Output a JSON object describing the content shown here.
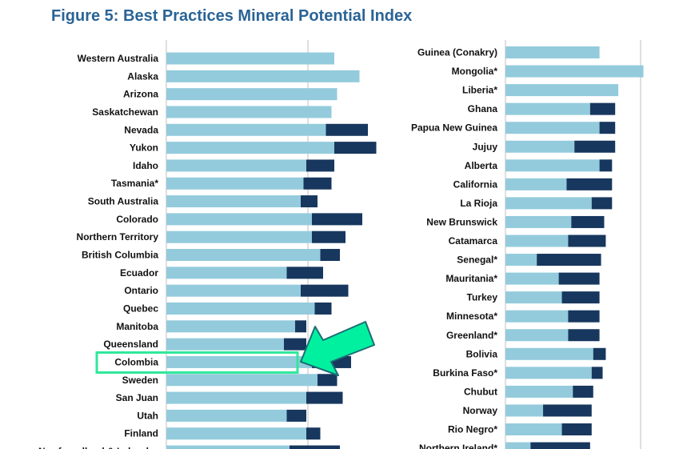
{
  "page": {
    "title": "Figure 5: Best Practices Mineral Potential Index"
  },
  "colors": {
    "title": "#2a6496",
    "light_bar": "#93cbdc",
    "dark_bar": "#17375e",
    "gridline": "#bfbfbf",
    "highlight_box": "#2ee89a",
    "arrow_fill": "#00f0a0",
    "arrow_stroke": "#1c6e74"
  },
  "annotation": {
    "highlighted_category": "Colombia",
    "type": "highlight-box-with-arrow"
  },
  "chart_data": [
    {
      "type": "bar",
      "orientation": "horizontal",
      "stacked": true,
      "categories": [
        "Western Australia",
        "Alaska",
        "Arizona",
        "Saskatchewan",
        "Nevada",
        "Yukon",
        "Idaho",
        "Tasmania*",
        "South Australia",
        "Colorado",
        "Northern Territory",
        "British Columbia",
        "Ecuador",
        "Ontario",
        "Quebec",
        "Manitoba",
        "Queensland",
        "Colombia",
        "Sweden",
        "San Juan",
        "Utah",
        "Finland",
        "Newfoundland & Labrador"
      ],
      "series": [
        {
          "values": [
            0.6,
            0.69,
            0.61,
            0.59,
            0.57,
            0.6,
            0.5,
            0.49,
            0.48,
            0.52,
            0.52,
            0.55,
            0.43,
            0.48,
            0.53,
            0.46,
            0.42,
            0.52,
            0.54,
            0.5,
            0.43,
            0.5,
            0.44
          ]
        },
        {
          "values": [
            0.0,
            0.0,
            0.0,
            0.0,
            0.15,
            0.15,
            0.1,
            0.1,
            0.06,
            0.18,
            0.12,
            0.07,
            0.13,
            0.17,
            0.06,
            0.04,
            0.08,
            0.14,
            0.07,
            0.13,
            0.07,
            0.05,
            0.18
          ]
        }
      ]
    },
    {
      "type": "bar",
      "orientation": "horizontal",
      "stacked": true,
      "categories": [
        "Guinea (Conakry)",
        "Mongolia*",
        "Liberia*",
        "Ghana",
        "Papua New Guinea",
        "Jujuy",
        "Alberta",
        "California",
        "La Rioja",
        "New Brunswick",
        "Catamarca",
        "Senegal*",
        "Mauritania*",
        "Turkey",
        "Minnesota*",
        "Greenland*",
        "Bolivia",
        "Burkina Faso*",
        "Chubut",
        "Norway",
        "Rio Negro*",
        "Northern Ireland*"
      ],
      "series": [
        {
          "values": [
            0.6,
            0.88,
            0.72,
            0.54,
            0.6,
            0.44,
            0.6,
            0.39,
            0.55,
            0.42,
            0.4,
            0.2,
            0.34,
            0.36,
            0.4,
            0.4,
            0.56,
            0.55,
            0.43,
            0.24,
            0.36,
            0.16
          ]
        },
        {
          "values": [
            0.0,
            0.0,
            0.0,
            0.16,
            0.1,
            0.26,
            0.08,
            0.29,
            0.13,
            0.21,
            0.24,
            0.41,
            0.26,
            0.24,
            0.2,
            0.2,
            0.08,
            0.07,
            0.13,
            0.31,
            0.19,
            0.38
          ]
        }
      ]
    }
  ]
}
